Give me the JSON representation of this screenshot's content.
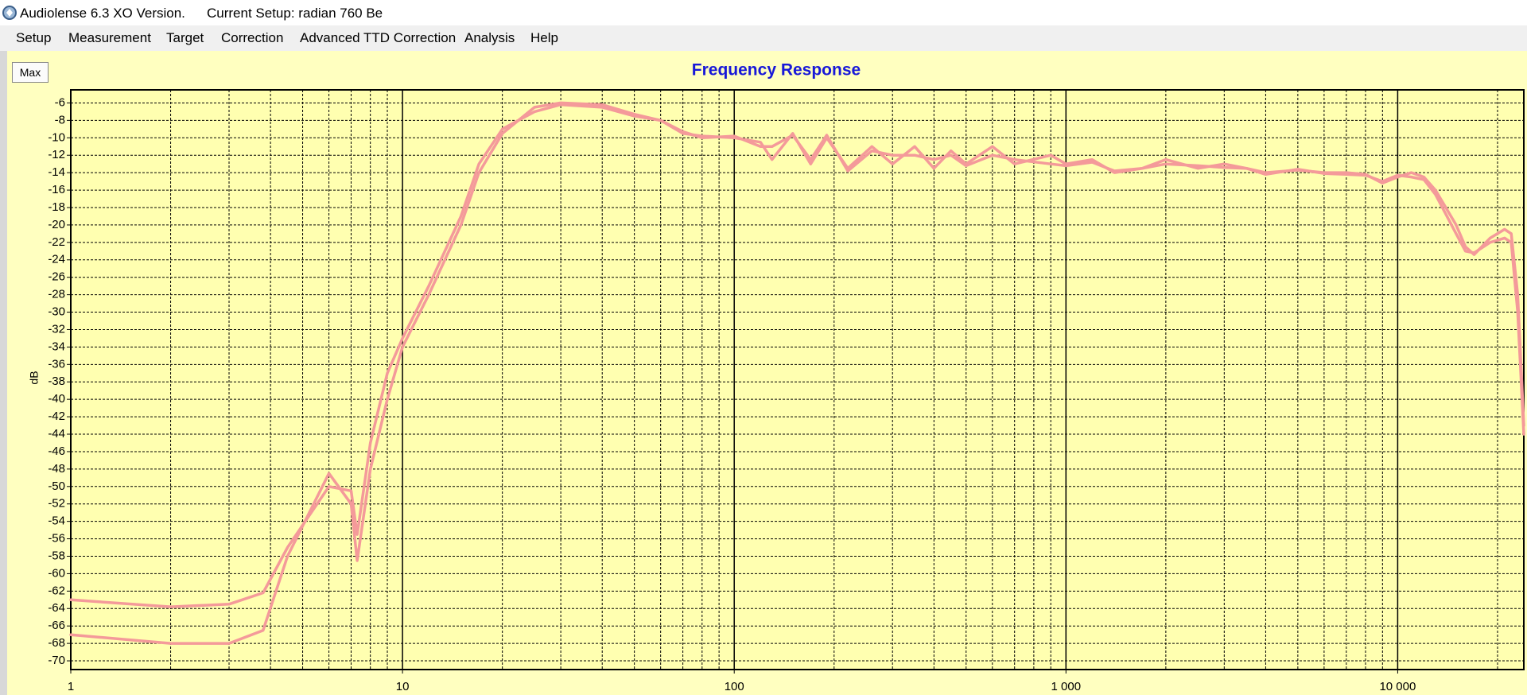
{
  "window": {
    "title": "Audiolense 6.3 XO Version.",
    "setup": "Current Setup: radian 760 Be"
  },
  "menu": [
    "Setup",
    "Measurement",
    "Target",
    "Correction",
    "Advanced TTD Correction",
    "Analysis",
    "Help"
  ],
  "button": "Max",
  "chart_data": {
    "type": "line",
    "title": "Frequency Response",
    "y_label": "dB",
    "x_scale": "log",
    "grid": true,
    "x": [
      1,
      2,
      3,
      3.8,
      4.5,
      6,
      7,
      7.3,
      8,
      9,
      10,
      12,
      15,
      17,
      20,
      25,
      30,
      40,
      50,
      60,
      70,
      80,
      100,
      120,
      130,
      150,
      170,
      190,
      220,
      260,
      300,
      350,
      400,
      450,
      500,
      600,
      700,
      900,
      1000,
      1200,
      1400,
      1700,
      2000,
      2500,
      3000,
      3500,
      4000,
      5000,
      6000,
      7000,
      8000,
      9000,
      10000,
      11000,
      12000,
      13000,
      15000,
      16000,
      17000,
      19000,
      21000,
      22000,
      23000,
      24000
    ],
    "series": [
      {
        "color": "#f49a9a",
        "values": [
          -63,
          -63.8,
          -63.5,
          -62.2,
          -57,
          -50,
          -50.5,
          -55.5,
          -45,
          -37,
          -33,
          -27,
          -19,
          -13,
          -9,
          -7,
          -6.2,
          -6.5,
          -7.5,
          -8,
          -9.5,
          -9.8,
          -10,
          -10.5,
          -12.5,
          -9.5,
          -13,
          -10,
          -13.5,
          -11,
          -13,
          -11,
          -13.5,
          -11.5,
          -13,
          -11,
          -13,
          -12,
          -13,
          -12.5,
          -14,
          -13.5,
          -12.5,
          -13.5,
          -13,
          -13.5,
          -14,
          -13.7,
          -14,
          -14,
          -14.2,
          -15.2,
          -14.5,
          -14,
          -14.5,
          -16,
          -20,
          -22.5,
          -23.4,
          -21.5,
          -20.5,
          -21,
          -28,
          -43
        ]
      },
      {
        "color": "#f49a9a",
        "values": [
          -67,
          -68,
          -68,
          -66.5,
          -58,
          -48.5,
          -52,
          -58.5,
          -48,
          -40,
          -34,
          -28,
          -20,
          -14,
          -9.5,
          -6.5,
          -6,
          -6.2,
          -7.3,
          -8,
          -9.3,
          -10,
          -9.8,
          -11,
          -11,
          -9.7,
          -12.5,
          -9.7,
          -13.8,
          -11.5,
          -12,
          -12,
          -12.5,
          -12,
          -13.2,
          -12,
          -12.5,
          -13,
          -13.2,
          -12.8,
          -13.8,
          -13.5,
          -13,
          -13.2,
          -13.4,
          -13.5,
          -14.2,
          -13.6,
          -14.1,
          -14.2,
          -14.3,
          -15,
          -14.3,
          -14.5,
          -14.8,
          -16.5,
          -21,
          -23,
          -23.2,
          -22,
          -21.5,
          -22,
          -30,
          -44
        ]
      }
    ],
    "xlim": [
      1,
      24000
    ],
    "xticks": [
      1,
      10,
      100,
      {
        "value": 1000,
        "label": "1 000"
      },
      {
        "value": 10000,
        "label": "10 000"
      }
    ],
    "xminorticks": [
      2,
      3,
      4,
      5,
      6,
      7,
      8,
      9,
      20,
      30,
      40,
      50,
      60,
      70,
      80,
      90,
      200,
      300,
      400,
      500,
      600,
      700,
      800,
      900,
      2000,
      3000,
      4000,
      5000,
      6000,
      7000,
      8000,
      9000,
      20000
    ],
    "ylim": [
      -71,
      -4.5
    ],
    "yticks": [
      -6,
      -8,
      -10,
      -12,
      -14,
      -16,
      -18,
      -20,
      -22,
      -24,
      -26,
      -28,
      -30,
      -32,
      -34,
      -36,
      -38,
      -40,
      -42,
      -44,
      -46,
      -48,
      -50,
      -52,
      -54,
      -56,
      -58,
      -60,
      -62,
      -64,
      -66,
      -68,
      -70
    ]
  }
}
